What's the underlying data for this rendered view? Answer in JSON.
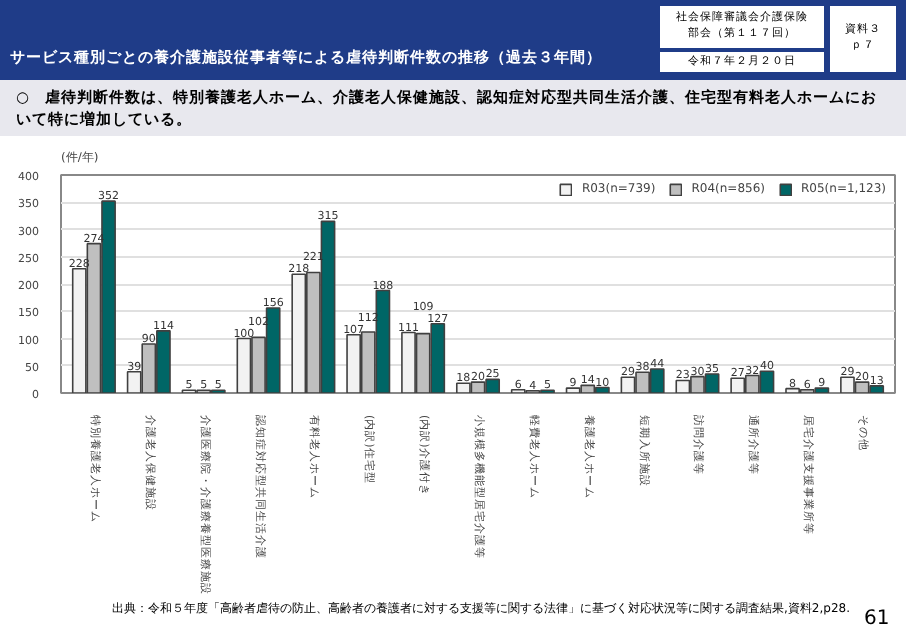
{
  "chart_data": {
    "type": "bar",
    "title": "サービス種別ごとの養介護施設従事者等による虐待判断件数の推移（過去３年間）",
    "subtitle": "○　虐待判断件数は、特別養護老人ホーム、介護老人保健施設、認知症対応型共同生活介護、住宅型有料老人ホームにおいて特に増加している。",
    "annotations": [
      "社会保障審議会介護保険部会（第１１７回）",
      "令和７年２月２０日",
      "資料３ｐ７",
      "出典：令和５年度「高齢者虐待の防止、高齢者の養護者に対する支援等に関する法律」に基づく対応状況等に関する調査結果,資料2,p28.",
      "61"
    ],
    "ylabel": "(件/年)",
    "categories": [
      "特別養護老人ホーム",
      "介護老人保健施設",
      "介護医療院・介護療養型医療施設",
      "認知症対応型共同生活介護",
      "有料老人ホーム",
      "(内訳)住宅型",
      "(内訳)介護付き",
      "小規模多機能型居宅介護等",
      "軽費老人ホーム",
      "養護老人ホーム",
      "短期入所施設",
      "訪問介護等",
      "通所介護等",
      "居宅介護支援事業所等",
      "その他"
    ],
    "series": [
      {
        "name": "R03(n=739)",
        "color": "#f2f2f2",
        "values": [
          228,
          39,
          5,
          100,
          218,
          107,
          111,
          18,
          6,
          9,
          29,
          23,
          27,
          8,
          29
        ]
      },
      {
        "name": "R04(n=856)",
        "color": "#bfbfbf",
        "values": [
          274,
          90,
          5,
          102,
          221,
          112,
          109,
          20,
          4,
          14,
          38,
          30,
          32,
          6,
          20
        ]
      },
      {
        "name": "R05(n=1,123)",
        "color": "#006666",
        "values": [
          352,
          114,
          5,
          156,
          315,
          188,
          127,
          25,
          5,
          10,
          44,
          35,
          40,
          9,
          13
        ]
      }
    ],
    "ylim": [
      0,
      400
    ],
    "yticks": [
      0,
      50,
      100,
      150,
      200,
      250,
      300,
      350,
      400
    ],
    "grid": "y",
    "legend": "top right",
    "data_labels": true
  }
}
